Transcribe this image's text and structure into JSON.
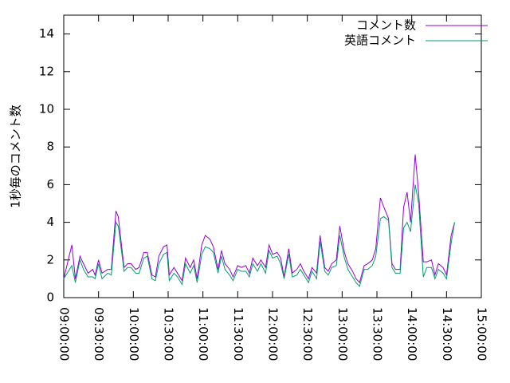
{
  "chart_data": {
    "type": "line",
    "ylabel": "1秒毎のコメント数",
    "ylim": [
      0,
      15
    ],
    "yticks": [
      0,
      2,
      4,
      6,
      8,
      10,
      12,
      14
    ],
    "xlim": [
      "09:00:00",
      "15:00:00"
    ],
    "xticks": [
      "09:00:00",
      "09:30:00",
      "10:00:00",
      "10:30:00",
      "11:00:00",
      "11:30:00",
      "12:00:00",
      "12:30:00",
      "13:00:00",
      "13:30:00",
      "14:00:00",
      "14:30:00",
      "15:00:00"
    ],
    "legend": "top-right",
    "grid": false,
    "x": [
      "09:00:00",
      "09:07:00",
      "09:10:00",
      "09:14:00",
      "09:17:00",
      "09:21:00",
      "09:25:00",
      "09:27:00",
      "09:30:00",
      "09:33:00",
      "09:38:00",
      "09:41:00",
      "09:45:00",
      "09:47:00",
      "09:52:00",
      "09:55:00",
      "09:58:00",
      "10:02:00",
      "10:05:00",
      "10:09:00",
      "10:12:00",
      "10:16:00",
      "10:19:00",
      "10:22:00",
      "10:26:00",
      "10:29:00",
      "10:31:00",
      "10:35:00",
      "10:38:00",
      "10:42:00",
      "10:45:00",
      "10:49:00",
      "10:52:00",
      "10:55:00",
      "10:59:00",
      "11:02:00",
      "11:06:00",
      "11:09:00",
      "11:13:00",
      "11:16:00",
      "11:19:00",
      "11:23:00",
      "11:26:00",
      "11:30:00",
      "11:33:00",
      "11:37:00",
      "11:40:00",
      "11:43:00",
      "11:47:00",
      "11:50:00",
      "11:54:00",
      "11:57:00",
      "12:00:00",
      "12:04:00",
      "12:07:00",
      "12:10:00",
      "12:14:00",
      "12:17:00",
      "12:21:00",
      "12:24:00",
      "12:27:00",
      "12:31:00",
      "12:34:00",
      "12:38:00",
      "12:41:00",
      "12:45:00",
      "12:48:00",
      "12:51:00",
      "12:55:00",
      "12:58:00",
      "13:02:00",
      "13:05:00",
      "13:09:00",
      "13:12:00",
      "13:15:00",
      "13:19:00",
      "13:22:00",
      "13:26:00",
      "13:29:00",
      "13:33:00",
      "13:36:00",
      "13:40:00",
      "13:43:00",
      "13:46:00",
      "13:50:00",
      "13:53:00",
      "13:56:00",
      "13:59:00",
      "14:03:00",
      "14:06:00",
      "14:10:00",
      "14:13:00",
      "14:17:00",
      "14:20:00",
      "14:23:00",
      "14:27:00",
      "14:30:00",
      "14:34:00",
      "14:37:00"
    ],
    "series": [
      {
        "name": "コメント数",
        "color": "#9400d3",
        "values": [
          1.0,
          2.8,
          1.0,
          2.2,
          1.8,
          1.3,
          1.5,
          1.2,
          2.0,
          1.3,
          1.5,
          1.5,
          4.6,
          4.3,
          1.6,
          1.8,
          1.8,
          1.5,
          1.6,
          2.4,
          2.4,
          1.2,
          1.1,
          2.2,
          2.7,
          2.8,
          1.2,
          1.6,
          1.3,
          0.9,
          2.1,
          1.6,
          2.0,
          1.0,
          2.8,
          3.3,
          3.1,
          2.7,
          1.5,
          2.5,
          1.8,
          1.5,
          1.1,
          1.7,
          1.6,
          1.7,
          1.3,
          2.1,
          1.7,
          2.0,
          1.6,
          2.8,
          2.3,
          2.4,
          2.1,
          1.1,
          2.6,
          1.3,
          1.5,
          1.8,
          1.4,
          1.0,
          1.6,
          1.3,
          3.3,
          1.6,
          1.4,
          1.8,
          2.0,
          3.8,
          2.4,
          1.8,
          1.4,
          1.0,
          0.8,
          1.7,
          1.8,
          2.0,
          2.6,
          5.3,
          4.8,
          4.2,
          1.8,
          1.5,
          1.5,
          4.8,
          5.6,
          4.0,
          7.6,
          5.5,
          1.9,
          1.9,
          2.0,
          1.2,
          1.8,
          1.6,
          1.2,
          3.3,
          4.0
        ]
      },
      {
        "name": "英語コメント",
        "color": "#009e73",
        "values": [
          1.0,
          1.7,
          0.8,
          2.0,
          1.5,
          1.1,
          1.1,
          1.0,
          1.8,
          1.0,
          1.3,
          1.2,
          4.0,
          3.8,
          1.4,
          1.6,
          1.6,
          1.3,
          1.3,
          2.1,
          2.2,
          1.0,
          0.9,
          1.8,
          2.3,
          2.4,
          0.9,
          1.3,
          1.1,
          0.7,
          1.8,
          1.3,
          1.7,
          0.8,
          2.3,
          2.7,
          2.6,
          2.4,
          1.3,
          2.2,
          1.5,
          1.2,
          0.9,
          1.5,
          1.4,
          1.4,
          1.1,
          1.8,
          1.4,
          1.8,
          1.3,
          2.5,
          2.1,
          2.2,
          1.8,
          1.0,
          2.3,
          1.1,
          1.2,
          1.5,
          1.2,
          0.8,
          1.4,
          1.0,
          3.0,
          1.4,
          1.2,
          1.6,
          1.7,
          3.3,
          2.1,
          1.5,
          1.1,
          0.8,
          0.6,
          1.5,
          1.5,
          1.7,
          2.2,
          4.2,
          4.3,
          4.1,
          1.6,
          1.3,
          1.3,
          3.7,
          4.0,
          3.5,
          6.0,
          5.0,
          1.1,
          1.6,
          1.6,
          1.0,
          1.5,
          1.3,
          1.0,
          2.9,
          4.0
        ]
      }
    ]
  }
}
